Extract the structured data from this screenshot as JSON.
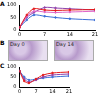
{
  "chart_data": [
    {
      "type": "line",
      "title": "A",
      "x": [
        0,
        2,
        4,
        7,
        10,
        14,
        21
      ],
      "series": [
        {
          "name": null,
          "color": "#e41a1c",
          "values": [
            10,
            60,
            85,
            80,
            78,
            80,
            82
          ]
        },
        {
          "name": null,
          "color": "#e066c8",
          "values": [
            10,
            55,
            75,
            72,
            70,
            72,
            75
          ]
        },
        {
          "name": null,
          "color": "#8e44ad",
          "values": [
            10,
            50,
            70,
            90,
            88,
            85,
            80
          ]
        },
        {
          "name": null,
          "color": "#3b6fd6",
          "values": [
            10,
            40,
            60,
            55,
            50,
            45,
            40
          ]
        }
      ],
      "xlim": [
        0,
        21
      ],
      "xticks": [
        0,
        7,
        14,
        21
      ],
      "ylim": [
        0,
        100
      ],
      "yticks": [
        0,
        50,
        100
      ],
      "grid": false
    },
    {
      "type": "line",
      "title": "C",
      "x": [
        0,
        2,
        4,
        7,
        10,
        14,
        21
      ],
      "series": [
        {
          "name": null,
          "color": "#e41a1c",
          "values": [
            80,
            30,
            20,
            40,
            60,
            70,
            75
          ]
        },
        {
          "name": null,
          "color": "#8e44ad",
          "values": [
            80,
            40,
            25,
            35,
            50,
            60,
            65
          ]
        },
        {
          "name": null,
          "color": "#3b6fd6",
          "values": [
            80,
            50,
            35,
            40,
            45,
            50,
            55
          ]
        }
      ],
      "xlim": [
        0,
        21
      ],
      "xticks": [
        0,
        7,
        14,
        21
      ],
      "ylim": [
        0,
        100
      ],
      "yticks": [
        0,
        50,
        100
      ],
      "grid": false
    }
  ],
  "images": {
    "title": "B",
    "captions": [
      "Day 0",
      "Day 14"
    ]
  }
}
